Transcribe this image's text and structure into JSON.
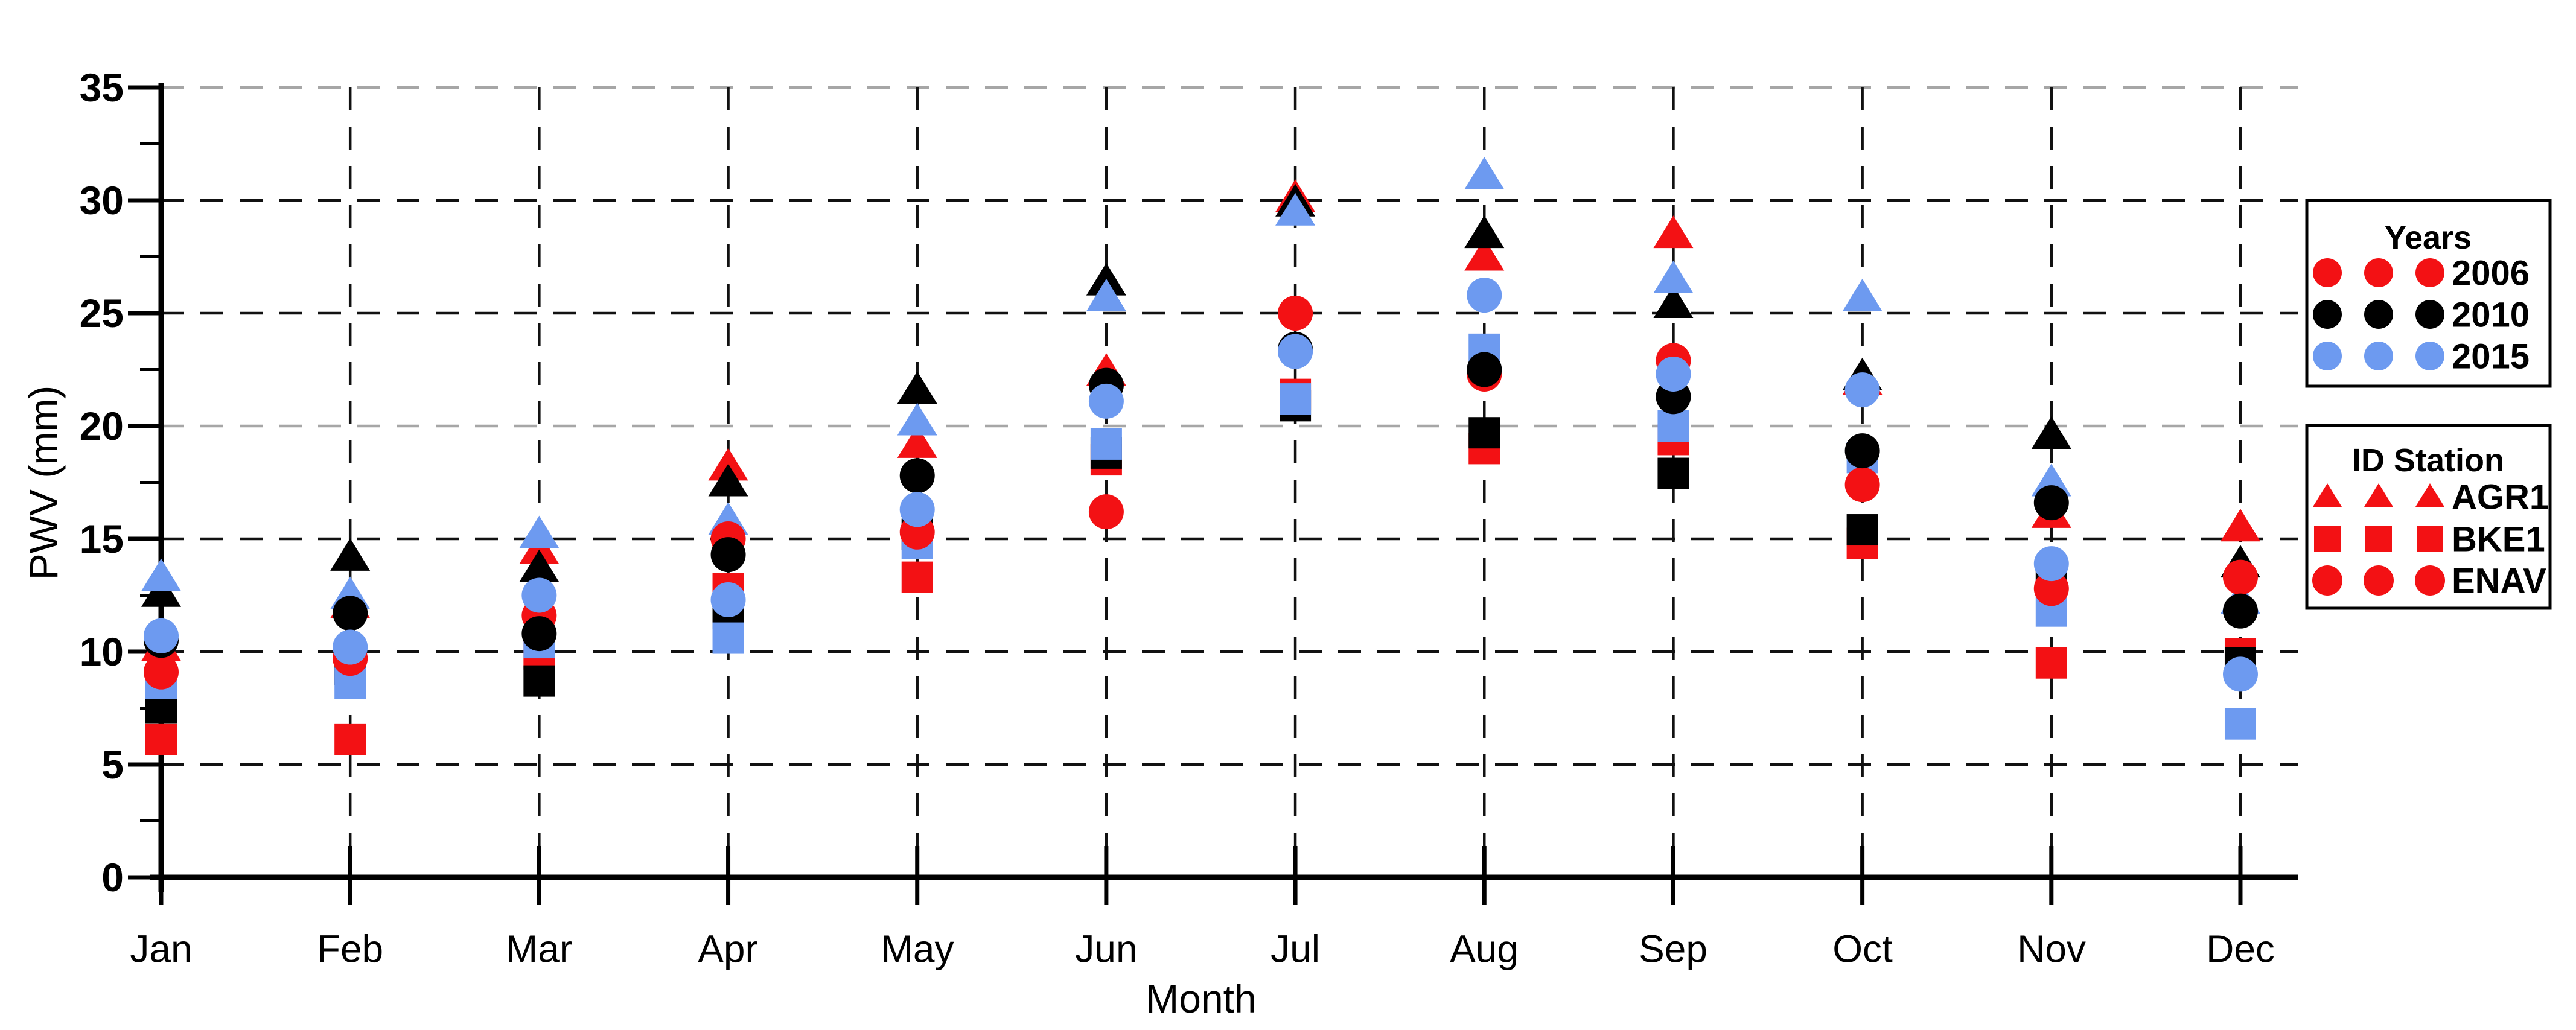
{
  "chart_data": {
    "type": "scatter",
    "xlabel": "Month",
    "ylabel": "PWV (mm)",
    "ylim": [
      0,
      35
    ],
    "ytick_step": 5,
    "ytick_minor_step": 2.5,
    "grid": "dashed horizontal at every 5 mm and dashed vertical at every month",
    "legend_position": "right outside plot",
    "ytick_labels": [
      "0",
      "5",
      "10",
      "15",
      "20",
      "25",
      "30",
      "35"
    ],
    "categories": [
      "Jan",
      "Feb",
      "Mar",
      "Apr",
      "May",
      "Jun",
      "Jul",
      "Aug",
      "Sep",
      "Oct",
      "Nov",
      "Dec"
    ],
    "colors": {
      "red": "#f31114",
      "black": "#000000",
      "blue": "#6d9af0",
      "grid_dark": "#111111",
      "grid_light": "#a6a6a6"
    },
    "legend_years": {
      "title": "Years",
      "entries": [
        {
          "label": "2006",
          "color_key": "red"
        },
        {
          "label": "2010",
          "color_key": "black"
        },
        {
          "label": "2015",
          "color_key": "blue"
        }
      ]
    },
    "legend_stations": {
      "title": "ID Station",
      "entries": [
        {
          "label": "AGR1",
          "marker": "triangle"
        },
        {
          "label": "BKE1",
          "marker": "square"
        },
        {
          "label": "ENAV",
          "marker": "circle"
        }
      ]
    },
    "series": [
      {
        "station": "AGR1",
        "year": "2006",
        "marker": "triangle",
        "color_key": "red",
        "values": [
          10.2,
          12.1,
          14.5,
          18.2,
          19.2,
          22.4,
          30.1,
          27.5,
          28.5,
          22.0,
          16.1,
          15.5
        ]
      },
      {
        "station": "AGR1",
        "year": "2010",
        "marker": "triangle",
        "color_key": "black",
        "values": [
          12.6,
          14.2,
          13.7,
          17.5,
          21.6,
          26.4,
          29.9,
          28.5,
          25.4,
          22.2,
          19.6,
          13.9
        ]
      },
      {
        "station": "AGR1",
        "year": "2015",
        "marker": "triangle",
        "color_key": "blue",
        "values": [
          13.3,
          12.5,
          15.2,
          15.8,
          20.2,
          25.7,
          29.5,
          31.1,
          26.5,
          25.7,
          17.5,
          12.3
        ]
      },
      {
        "station": "BKE1",
        "year": "2006",
        "marker": "square",
        "color_key": "red",
        "values": [
          6.1,
          6.1,
          9.9,
          12.8,
          13.3,
          18.5,
          21.4,
          19.0,
          19.4,
          14.8,
          9.5,
          9.9
        ]
      },
      {
        "station": "BKE1",
        "year": "2010",
        "marker": "square",
        "color_key": "black",
        "values": [
          7.5,
          9.2,
          8.7,
          11.7,
          15.2,
          18.8,
          20.9,
          19.7,
          17.9,
          15.4,
          13.4,
          9.5
        ]
      },
      {
        "station": "BKE1",
        "year": "2015",
        "marker": "square",
        "color_key": "blue",
        "values": [
          8.6,
          8.6,
          10.4,
          10.6,
          14.8,
          19.2,
          21.2,
          23.4,
          20.0,
          18.6,
          11.8,
          6.8
        ]
      },
      {
        "station": "ENAV",
        "year": "2006",
        "marker": "circle",
        "color_key": "red",
        "values": [
          9.1,
          9.7,
          11.6,
          15.0,
          15.3,
          16.2,
          25.0,
          22.3,
          22.9,
          17.4,
          12.8,
          13.3
        ]
      },
      {
        "station": "ENAV",
        "year": "2010",
        "marker": "circle",
        "color_key": "black",
        "values": [
          10.5,
          11.7,
          10.8,
          14.3,
          17.8,
          21.8,
          23.4,
          22.5,
          21.3,
          18.9,
          16.6,
          11.8
        ]
      },
      {
        "station": "ENAV",
        "year": "2015",
        "marker": "circle",
        "color_key": "blue",
        "values": [
          10.7,
          10.2,
          12.5,
          12.3,
          16.3,
          21.1,
          23.3,
          25.8,
          22.3,
          21.6,
          13.9,
          9.0
        ]
      }
    ]
  }
}
